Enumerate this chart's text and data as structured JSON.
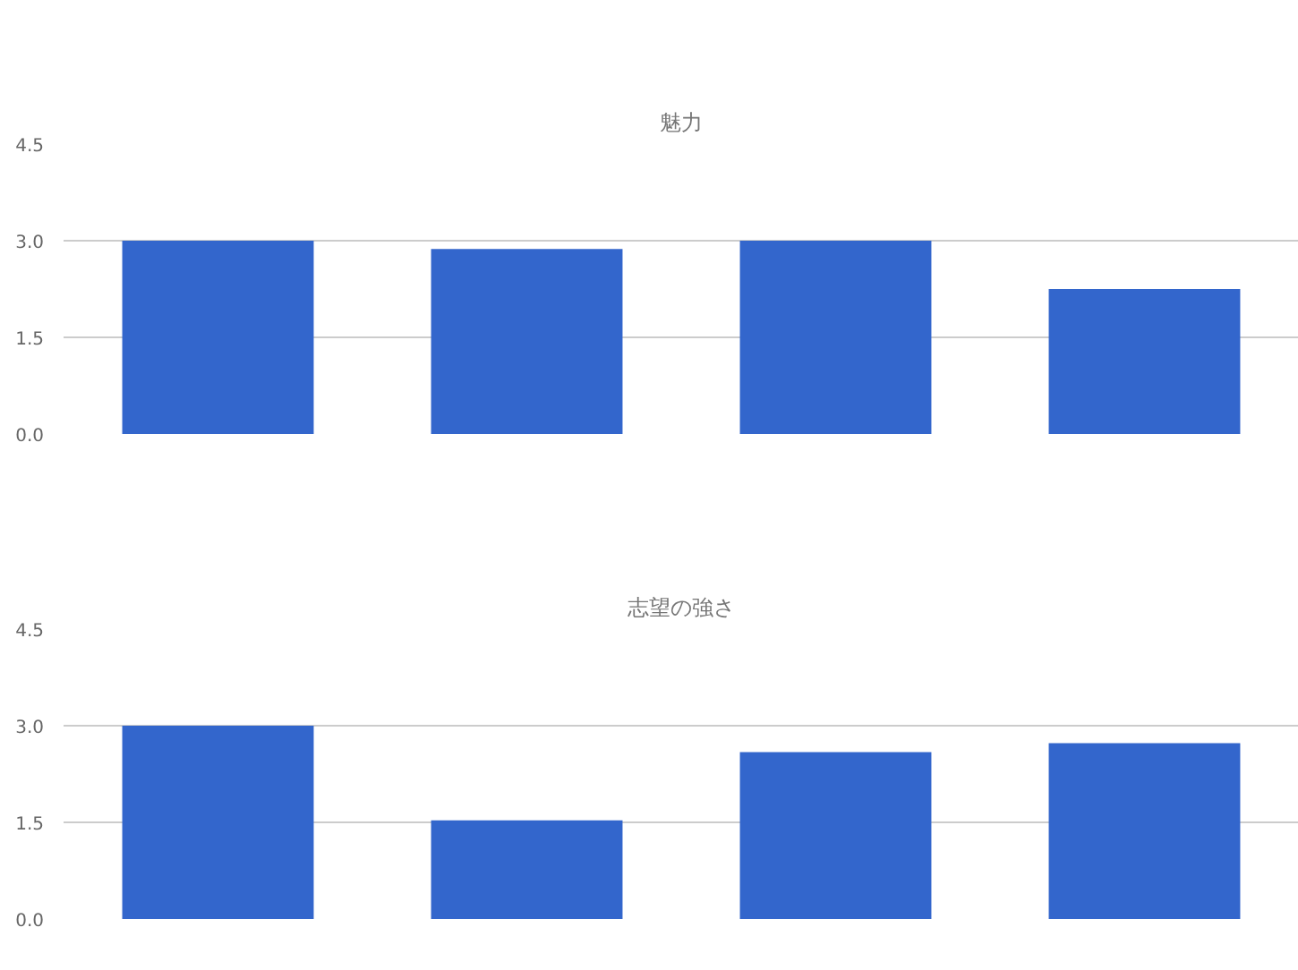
{
  "chart_data": [
    {
      "type": "bar",
      "title": "魅力",
      "categories": [
        null,
        null,
        null,
        null
      ],
      "values": [
        3.0,
        2.87,
        3.0,
        2.25
      ],
      "color": "#3366cc",
      "ylim": [
        0,
        4.5
      ],
      "yticks": [
        {
          "value": 0,
          "label": "0.0"
        },
        {
          "value": 1.5,
          "label": "1.5"
        },
        {
          "value": 3,
          "label": "3.0"
        },
        {
          "value": 4.5,
          "label": "4.5"
        }
      ],
      "grid": "y"
    },
    {
      "type": "bar",
      "title": "志望の強さ",
      "categories": [
        null,
        null,
        null,
        null
      ],
      "values": [
        3.0,
        1.53,
        2.59,
        2.73
      ],
      "color": "#3366cc",
      "ylim": [
        0,
        4.5
      ],
      "yticks": [
        {
          "value": 0,
          "label": "0.0"
        },
        {
          "value": 1.5,
          "label": "1.5"
        },
        {
          "value": 3,
          "label": "3.0"
        },
        {
          "value": 4.5,
          "label": "4.5"
        }
      ],
      "grid": "y"
    }
  ]
}
